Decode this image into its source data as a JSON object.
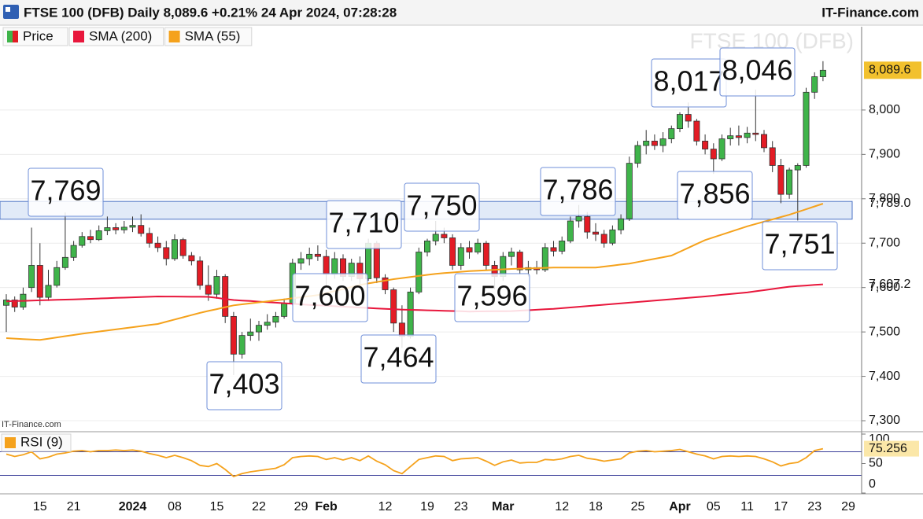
{
  "chart_data": [
    {
      "type": "candlestick",
      "title": "FTSE 100 (DFB) Daily 8,089.6 +0.21% 24 Apr 2024, 07:28:28",
      "source": "IT-Finance.com",
      "watermark": "FTSE 100 (DFB)",
      "categories": [
        null,
        null,
        null,
        null,
        "15",
        null,
        null,
        null,
        "21",
        null,
        null,
        null,
        null,
        null,
        null,
        "2024",
        null,
        null,
        null,
        null,
        "08",
        null,
        null,
        null,
        null,
        "15",
        null,
        null,
        null,
        null,
        "22",
        null,
        null,
        null,
        null,
        "29",
        null,
        null,
        "Feb",
        null,
        null,
        null,
        null,
        null,
        null,
        "12",
        null,
        null,
        null,
        null,
        "19",
        null,
        null,
        null,
        "23",
        null,
        null,
        null,
        null,
        "Mar",
        null,
        null,
        null,
        null,
        null,
        null,
        "12",
        null,
        null,
        null,
        "18",
        null,
        null,
        null,
        null,
        "25",
        null,
        null,
        null,
        null,
        "Apr",
        null,
        null,
        null,
        "05",
        null,
        null,
        null,
        "11",
        null,
        null,
        null,
        "17",
        null,
        null,
        null,
        "23",
        null,
        null,
        null,
        "29"
      ],
      "series": [
        {
          "name": "Price",
          "up_color": "#3fb44a",
          "down_color": "#e31c25",
          "last_label": "8,089.6",
          "ohlc": [
            [
              7560,
              7585,
              7500,
              7572
            ],
            [
              7572,
              7580,
              7545,
              7556
            ],
            [
              7556,
              7600,
              7550,
              7585
            ],
            [
              7600,
              7735,
              7590,
              7650
            ],
            [
              7650,
              7700,
              7560,
              7578
            ],
            [
              7578,
              7640,
              7570,
              7605
            ],
            [
              7605,
              7660,
              7600,
              7645
            ],
            [
              7645,
              7769,
              7640,
              7668
            ],
            [
              7668,
              7705,
              7660,
              7695
            ],
            [
              7695,
              7725,
              7690,
              7715
            ],
            [
              7715,
              7730,
              7700,
              7708
            ],
            [
              7708,
              7740,
              7705,
              7728
            ],
            [
              7728,
              7760,
              7718,
              7735
            ],
            [
              7735,
              7745,
              7720,
              7730
            ],
            [
              7730,
              7750,
              7722,
              7736
            ],
            [
              7736,
              7760,
              7725,
              7740
            ],
            [
              7740,
              7765,
              7715,
              7722
            ],
            [
              7722,
              7735,
              7690,
              7700
            ],
            [
              7700,
              7715,
              7680,
              7690
            ],
            [
              7690,
              7705,
              7650,
              7665
            ],
            [
              7665,
              7720,
              7660,
              7708
            ],
            [
              7708,
              7712,
              7665,
              7672
            ],
            [
              7672,
              7680,
              7650,
              7660
            ],
            [
              7660,
              7670,
              7595,
              7605
            ],
            [
              7605,
              7650,
              7570,
              7585
            ],
            [
              7585,
              7640,
              7575,
              7625
            ],
            [
              7625,
              7630,
              7520,
              7535
            ],
            [
              7535,
              7545,
              7403,
              7450
            ],
            [
              7450,
              7500,
              7440,
              7492
            ],
            [
              7492,
              7530,
              7480,
              7500
            ],
            [
              7500,
              7525,
              7480,
              7515
            ],
            [
              7515,
              7540,
              7505,
              7522
            ],
            [
              7522,
              7545,
              7510,
              7535
            ],
            [
              7535,
              7575,
              7530,
              7565
            ],
            [
              7565,
              7665,
              7560,
              7655
            ],
            [
              7655,
              7680,
              7640,
              7665
            ],
            [
              7665,
              7690,
              7650,
              7675
            ],
            [
              7675,
              7695,
              7660,
              7670
            ],
            [
              7670,
              7685,
              7600,
              7630
            ],
            [
              7630,
              7680,
              7620,
              7665
            ],
            [
              7665,
              7675,
              7615,
              7625
            ],
            [
              7625,
              7665,
              7615,
              7655
            ],
            [
              7655,
              7670,
              7600,
              7620
            ],
            [
              7620,
              7710,
              7615,
              7700
            ],
            [
              7700,
              7705,
              7610,
              7622
            ],
            [
              7622,
              7630,
              7585,
              7595
            ],
            [
              7595,
              7600,
              7500,
              7520
            ],
            [
              7520,
              7560,
              7464,
              7490
            ],
            [
              7490,
              7600,
              7485,
              7590
            ],
            [
              7590,
              7690,
              7585,
              7680
            ],
            [
              7680,
              7710,
              7670,
              7705
            ],
            [
              7705,
              7750,
              7695,
              7720
            ],
            [
              7720,
              7735,
              7700,
              7712
            ],
            [
              7712,
              7720,
              7640,
              7650
            ],
            [
              7650,
              7700,
              7640,
              7690
            ],
            [
              7690,
              7705,
              7665,
              7680
            ],
            [
              7680,
              7710,
              7675,
              7700
            ],
            [
              7700,
              7705,
              7640,
              7650
            ],
            [
              7650,
              7660,
              7596,
              7625
            ],
            [
              7625,
              7680,
              7615,
              7670
            ],
            [
              7670,
              7690,
              7650,
              7680
            ],
            [
              7680,
              7685,
              7630,
              7640
            ],
            [
              7640,
              7660,
              7625,
              7645
            ],
            [
              7645,
              7660,
              7630,
              7640
            ],
            [
              7640,
              7700,
              7635,
              7690
            ],
            [
              7690,
              7705,
              7670,
              7682
            ],
            [
              7682,
              7715,
              7675,
              7705
            ],
            [
              7705,
              7760,
              7700,
              7750
            ],
            [
              7750,
              7786,
              7735,
              7760
            ],
            [
              7760,
              7770,
              7710,
              7725
            ],
            [
              7725,
              7745,
              7705,
              7720
            ],
            [
              7720,
              7730,
              7690,
              7700
            ],
            [
              7700,
              7740,
              7695,
              7730
            ],
            [
              7730,
              7765,
              7720,
              7755
            ],
            [
              7755,
              7895,
              7750,
              7880
            ],
            [
              7880,
              7930,
              7870,
              7920
            ],
            [
              7920,
              7955,
              7900,
              7930
            ],
            [
              7930,
              7945,
              7910,
              7920
            ],
            [
              7920,
              7950,
              7905,
              7935
            ],
            [
              7935,
              7965,
              7925,
              7958
            ],
            [
              7958,
              7995,
              7950,
              7990
            ],
            [
              7990,
              8017,
              7960,
              7975
            ],
            [
              7975,
              7980,
              7920,
              7930
            ],
            [
              7930,
              7945,
              7900,
              7912
            ],
            [
              7912,
              7925,
              7856,
              7890
            ],
            [
              7890,
              7945,
              7885,
              7935
            ],
            [
              7935,
              7960,
              7920,
              7942
            ],
            [
              7942,
              7965,
              7920,
              7938
            ],
            [
              7938,
              7962,
              7925,
              7948
            ],
            [
              7948,
              8046,
              7930,
              7945
            ],
            [
              7945,
              7955,
              7905,
              7915
            ],
            [
              7915,
              7930,
              7860,
              7875
            ],
            [
              7875,
              7890,
              7790,
              7810
            ],
            [
              7810,
              7870,
              7800,
              7865
            ],
            [
              7865,
              7880,
              7751,
              7875
            ],
            [
              7875,
              8050,
              7870,
              8040
            ],
            [
              8040,
              8085,
              8025,
              8075
            ],
            [
              8075,
              8110,
              8065,
              8089.6
            ],
            null,
            null,
            null
          ]
        },
        {
          "name": "SMA (200)",
          "color": "#e8173c",
          "last_label": "7,607.2",
          "values": [
            7569,
            7569.6,
            7570.1,
            7570.7,
            7571.2,
            7571.8,
            7572.3,
            7572.9,
            7573.4,
            7574,
            7574.7,
            7575.3,
            7576,
            7576.7,
            7577.3,
            7578,
            7578.7,
            7579.3,
            7580,
            7579.8,
            7579.7,
            7579.5,
            7579.3,
            7579.2,
            7579,
            7576.7,
            7574.3,
            7572,
            7570.8,
            7569.6,
            7568.3,
            7567.1,
            7565.9,
            7564.7,
            7563.4,
            7562.2,
            7561,
            7560,
            7559,
            7558,
            7557,
            7556,
            7555,
            7554,
            7553,
            7552,
            7551,
            7550.4,
            7549.9,
            7549.3,
            7548.8,
            7548.2,
            7547.7,
            7547.1,
            7546.6,
            7546,
            7546.2,
            7546.4,
            7546.6,
            7546.8,
            7547,
            7548,
            7549,
            7550,
            7551,
            7552,
            7553.6,
            7555.1,
            7556.7,
            7558.2,
            7559.8,
            7561.3,
            7562.9,
            7564.4,
            7566,
            7567.6,
            7569.1,
            7570.7,
            7572.2,
            7573.8,
            7575.3,
            7576.9,
            7578.4,
            7580,
            7581.8,
            7583.6,
            7585.4,
            7587.2,
            7589,
            7591.6,
            7594.2,
            7596.8,
            7599.4,
            7602,
            7603.3,
            7604.6,
            7605.9,
            7607.2,
            null,
            null,
            null
          ]
        },
        {
          "name": "SMA (55)",
          "color": "#f5a21c",
          "last_label": "7,789.0",
          "values": [
            7486,
            7485,
            7484,
            7483,
            7482,
            7484.8,
            7487.6,
            7490.4,
            7493.2,
            7496,
            7498.4,
            7500.9,
            7503.3,
            7505.8,
            7508.2,
            7510.7,
            7513.1,
            7515.6,
            7518,
            7523,
            7528,
            7533,
            7538,
            7543,
            7547.3,
            7551.5,
            7555.8,
            7560,
            7562.2,
            7564.4,
            7566.6,
            7568.8,
            7571,
            7573.4,
            7575.8,
            7578.2,
            7580.6,
            7583,
            7587.6,
            7592.2,
            7596.8,
            7601.4,
            7606,
            7609.3,
            7612.5,
            7615.8,
            7619,
            7621.4,
            7623.8,
            7626.2,
            7628.6,
            7631,
            7632.5,
            7634,
            7635.5,
            7637,
            7638,
            7639,
            7640,
            7641,
            7642,
            7642.6,
            7643.2,
            7643.8,
            7644.4,
            7645,
            7645,
            7645,
            7645,
            7645,
            7645,
            7647.3,
            7649.5,
            7651.8,
            7654,
            7657.6,
            7661.2,
            7664.8,
            7668.4,
            7672,
            7680.8,
            7689.5,
            7698.3,
            7707,
            7713.2,
            7719.4,
            7725.6,
            7731.8,
            7738,
            7743.2,
            7748.4,
            7753.6,
            7758.8,
            7764,
            7770.3,
            7776.5,
            7782.8,
            7789,
            null,
            null,
            null
          ]
        }
      ],
      "ylim": [
        7277,
        8138
      ],
      "yticks": [
        {
          "value": 7300,
          "label": "7,300"
        },
        {
          "value": 7400,
          "label": "7,400"
        },
        {
          "value": 7500,
          "label": "7,500"
        },
        {
          "value": 7600,
          "label": "7,600"
        },
        {
          "value": 7700,
          "label": "7,700"
        },
        {
          "value": 7800,
          "label": "7,800"
        },
        {
          "value": 7900,
          "label": "7,900"
        },
        {
          "value": 8000,
          "label": "8,000"
        }
      ],
      "grid": true,
      "band": [
        7754,
        7794
      ],
      "band_color": "#c9d9f3",
      "annotations": [
        "7,769",
        "7,403",
        "7,710",
        "7,600",
        "7,750",
        "7,464",
        "7,596",
        "7,786",
        "8,017",
        "8,046",
        "7,856",
        "7,751"
      ]
    },
    {
      "type": "line",
      "series": [
        {
          "name": "RSI (9)",
          "color": "#f5a21c",
          "last_label": "75.256",
          "values": [
            66,
            62,
            65,
            70,
            58,
            61,
            66,
            68,
            71,
            72,
            70,
            72,
            72,
            73,
            72,
            73,
            71,
            67,
            64,
            60,
            64,
            60,
            55,
            47,
            45,
            50,
            40,
            28,
            33,
            36,
            38,
            40,
            42,
            48,
            60,
            62,
            63,
            62,
            57,
            60,
            56,
            60,
            55,
            63,
            54,
            48,
            38,
            33,
            45,
            57,
            60,
            63,
            62,
            55,
            58,
            59,
            60,
            54,
            47,
            53,
            56,
            51,
            52,
            52,
            57,
            56,
            58,
            62,
            64,
            59,
            57,
            54,
            56,
            58,
            68,
            71,
            72,
            70,
            71,
            72,
            74,
            70,
            66,
            63,
            58,
            62,
            63,
            62,
            63,
            62,
            58,
            53,
            46,
            50,
            52,
            60,
            72,
            75.256,
            null,
            null,
            null
          ]
        }
      ],
      "ylim": [
        0,
        100
      ],
      "yticks": [
        0,
        50,
        100
      ],
      "hlines": [
        30,
        70
      ]
    }
  ]
}
